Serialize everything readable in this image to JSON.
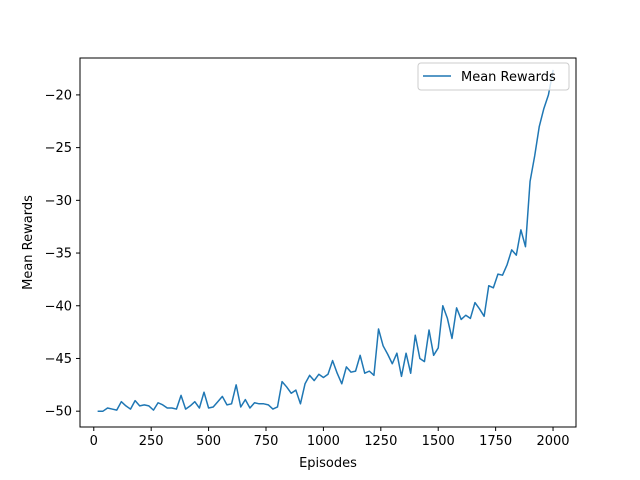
{
  "chart_data": {
    "type": "line",
    "title": "",
    "xlabel": "Episodes",
    "ylabel": "Mean Rewards",
    "xlim": [
      -60,
      2100
    ],
    "ylim": [
      -51.5,
      -16.5
    ],
    "xticks": [
      0,
      250,
      500,
      750,
      1000,
      1250,
      1500,
      1750,
      2000
    ],
    "yticks": [
      -50,
      -45,
      -40,
      -35,
      -30,
      -25,
      -20
    ],
    "xtick_labels": [
      "0",
      "250",
      "500",
      "750",
      "1000",
      "1250",
      "1500",
      "1750",
      "2000"
    ],
    "ytick_labels": [
      "−50",
      "−45",
      "−40",
      "−35",
      "−30",
      "−25",
      "−20"
    ],
    "grid": false,
    "legend_position": "top-right",
    "series": [
      {
        "name": "Mean Rewards",
        "color": "#1f77b4",
        "x": [
          20,
          40,
          60,
          80,
          100,
          120,
          140,
          160,
          180,
          200,
          220,
          240,
          260,
          280,
          300,
          320,
          340,
          360,
          380,
          400,
          420,
          440,
          460,
          480,
          500,
          520,
          540,
          560,
          580,
          600,
          620,
          640,
          660,
          680,
          700,
          720,
          740,
          760,
          780,
          800,
          820,
          840,
          860,
          880,
          900,
          920,
          940,
          960,
          980,
          1000,
          1020,
          1040,
          1060,
          1080,
          1100,
          1120,
          1140,
          1160,
          1180,
          1200,
          1220,
          1240,
          1260,
          1280,
          1300,
          1320,
          1340,
          1360,
          1380,
          1400,
          1420,
          1440,
          1460,
          1480,
          1500,
          1520,
          1540,
          1560,
          1580,
          1600,
          1620,
          1640,
          1660,
          1680,
          1700,
          1720,
          1740,
          1760,
          1780,
          1800,
          1820,
          1840,
          1860,
          1880,
          1900,
          1920,
          1940,
          1960,
          1980,
          2000
        ],
        "y": [
          -50.0,
          -50.0,
          -49.7,
          -49.8,
          -49.9,
          -49.1,
          -49.5,
          -49.8,
          -49.0,
          -49.5,
          -49.4,
          -49.5,
          -49.9,
          -49.2,
          -49.4,
          -49.7,
          -49.7,
          -49.8,
          -48.5,
          -49.8,
          -49.5,
          -49.1,
          -49.7,
          -48.2,
          -49.7,
          -49.6,
          -49.1,
          -48.6,
          -49.4,
          -49.3,
          -47.5,
          -49.6,
          -48.9,
          -49.7,
          -49.2,
          -49.3,
          -49.3,
          -49.4,
          -49.8,
          -49.6,
          -47.2,
          -47.7,
          -48.3,
          -48.0,
          -49.3,
          -47.4,
          -46.6,
          -47.1,
          -46.5,
          -46.8,
          -46.5,
          -45.2,
          -46.4,
          -47.4,
          -45.8,
          -46.3,
          -46.2,
          -44.7,
          -46.4,
          -46.2,
          -46.6,
          -42.2,
          -43.8,
          -44.6,
          -45.5,
          -44.5,
          -46.7,
          -44.5,
          -46.4,
          -42.8,
          -45.0,
          -45.3,
          -42.3,
          -44.7,
          -44.0,
          -40.0,
          -41.2,
          -43.1,
          -40.2,
          -41.3,
          -40.9,
          -41.2,
          -39.7,
          -40.3,
          -41.0,
          -38.1,
          -38.3,
          -37.0,
          -37.1,
          -36.1,
          -34.7,
          -35.2,
          -32.8,
          -34.4,
          -28.2,
          -25.8,
          -23.0,
          -21.3,
          -20.0,
          -17.7
        ]
      }
    ]
  }
}
